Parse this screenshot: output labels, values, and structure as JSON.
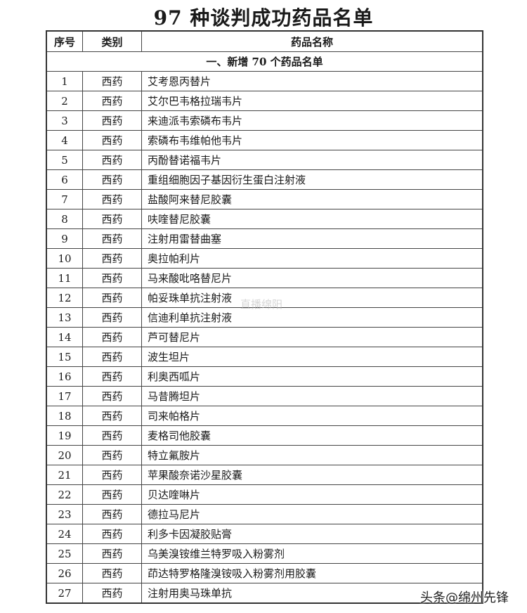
{
  "title": "97 种谈判成功药品名单",
  "table": {
    "headers": [
      "序号",
      "类别",
      "药品名称"
    ],
    "section": "一、新增 70 个药品名单",
    "rows": [
      {
        "no": "1",
        "type": "西药",
        "name": "艾考恩丙替片"
      },
      {
        "no": "2",
        "type": "西药",
        "name": "艾尔巴韦格拉瑞韦片"
      },
      {
        "no": "3",
        "type": "西药",
        "name": "来迪派韦索磷布韦片"
      },
      {
        "no": "4",
        "type": "西药",
        "name": "索磷布韦维帕他韦片"
      },
      {
        "no": "5",
        "type": "西药",
        "name": "丙酚替诺福韦片"
      },
      {
        "no": "6",
        "type": "西药",
        "name": "重组细胞因子基因衍生蛋白注射液"
      },
      {
        "no": "7",
        "type": "西药",
        "name": "盐酸阿来替尼胶囊"
      },
      {
        "no": "8",
        "type": "西药",
        "name": "呋喹替尼胶囊"
      },
      {
        "no": "9",
        "type": "西药",
        "name": "注射用雷替曲塞"
      },
      {
        "no": "10",
        "type": "西药",
        "name": "奥拉帕利片"
      },
      {
        "no": "11",
        "type": "西药",
        "name": "马来酸吡咯替尼片"
      },
      {
        "no": "12",
        "type": "西药",
        "name": "帕妥珠单抗注射液"
      },
      {
        "no": "13",
        "type": "西药",
        "name": "信迪利单抗注射液"
      },
      {
        "no": "14",
        "type": "西药",
        "name": "芦可替尼片"
      },
      {
        "no": "15",
        "type": "西药",
        "name": "波生坦片"
      },
      {
        "no": "16",
        "type": "西药",
        "name": "利奥西呱片"
      },
      {
        "no": "17",
        "type": "西药",
        "name": "马昔腾坦片"
      },
      {
        "no": "18",
        "type": "西药",
        "name": "司来帕格片"
      },
      {
        "no": "19",
        "type": "西药",
        "name": "麦格司他胶囊"
      },
      {
        "no": "20",
        "type": "西药",
        "name": "特立氟胺片"
      },
      {
        "no": "21",
        "type": "西药",
        "name": "苹果酸奈诺沙星胶囊"
      },
      {
        "no": "22",
        "type": "西药",
        "name": "贝达喹啉片"
      },
      {
        "no": "23",
        "type": "西药",
        "name": "德拉马尼片"
      },
      {
        "no": "24",
        "type": "西药",
        "name": "利多卡因凝胶贴膏"
      },
      {
        "no": "25",
        "type": "西药",
        "name": "乌美溴铵维兰特罗吸入粉雾剂"
      },
      {
        "no": "26",
        "type": "西药",
        "name": "茚达特罗格隆溴铵吸入粉雾剂用胶囊"
      },
      {
        "no": "27",
        "type": "西药",
        "name": "注射用奥马珠单抗"
      }
    ]
  },
  "watermarks": {
    "center": "直播绵阳",
    "corner": "头条@绵州先锋"
  }
}
